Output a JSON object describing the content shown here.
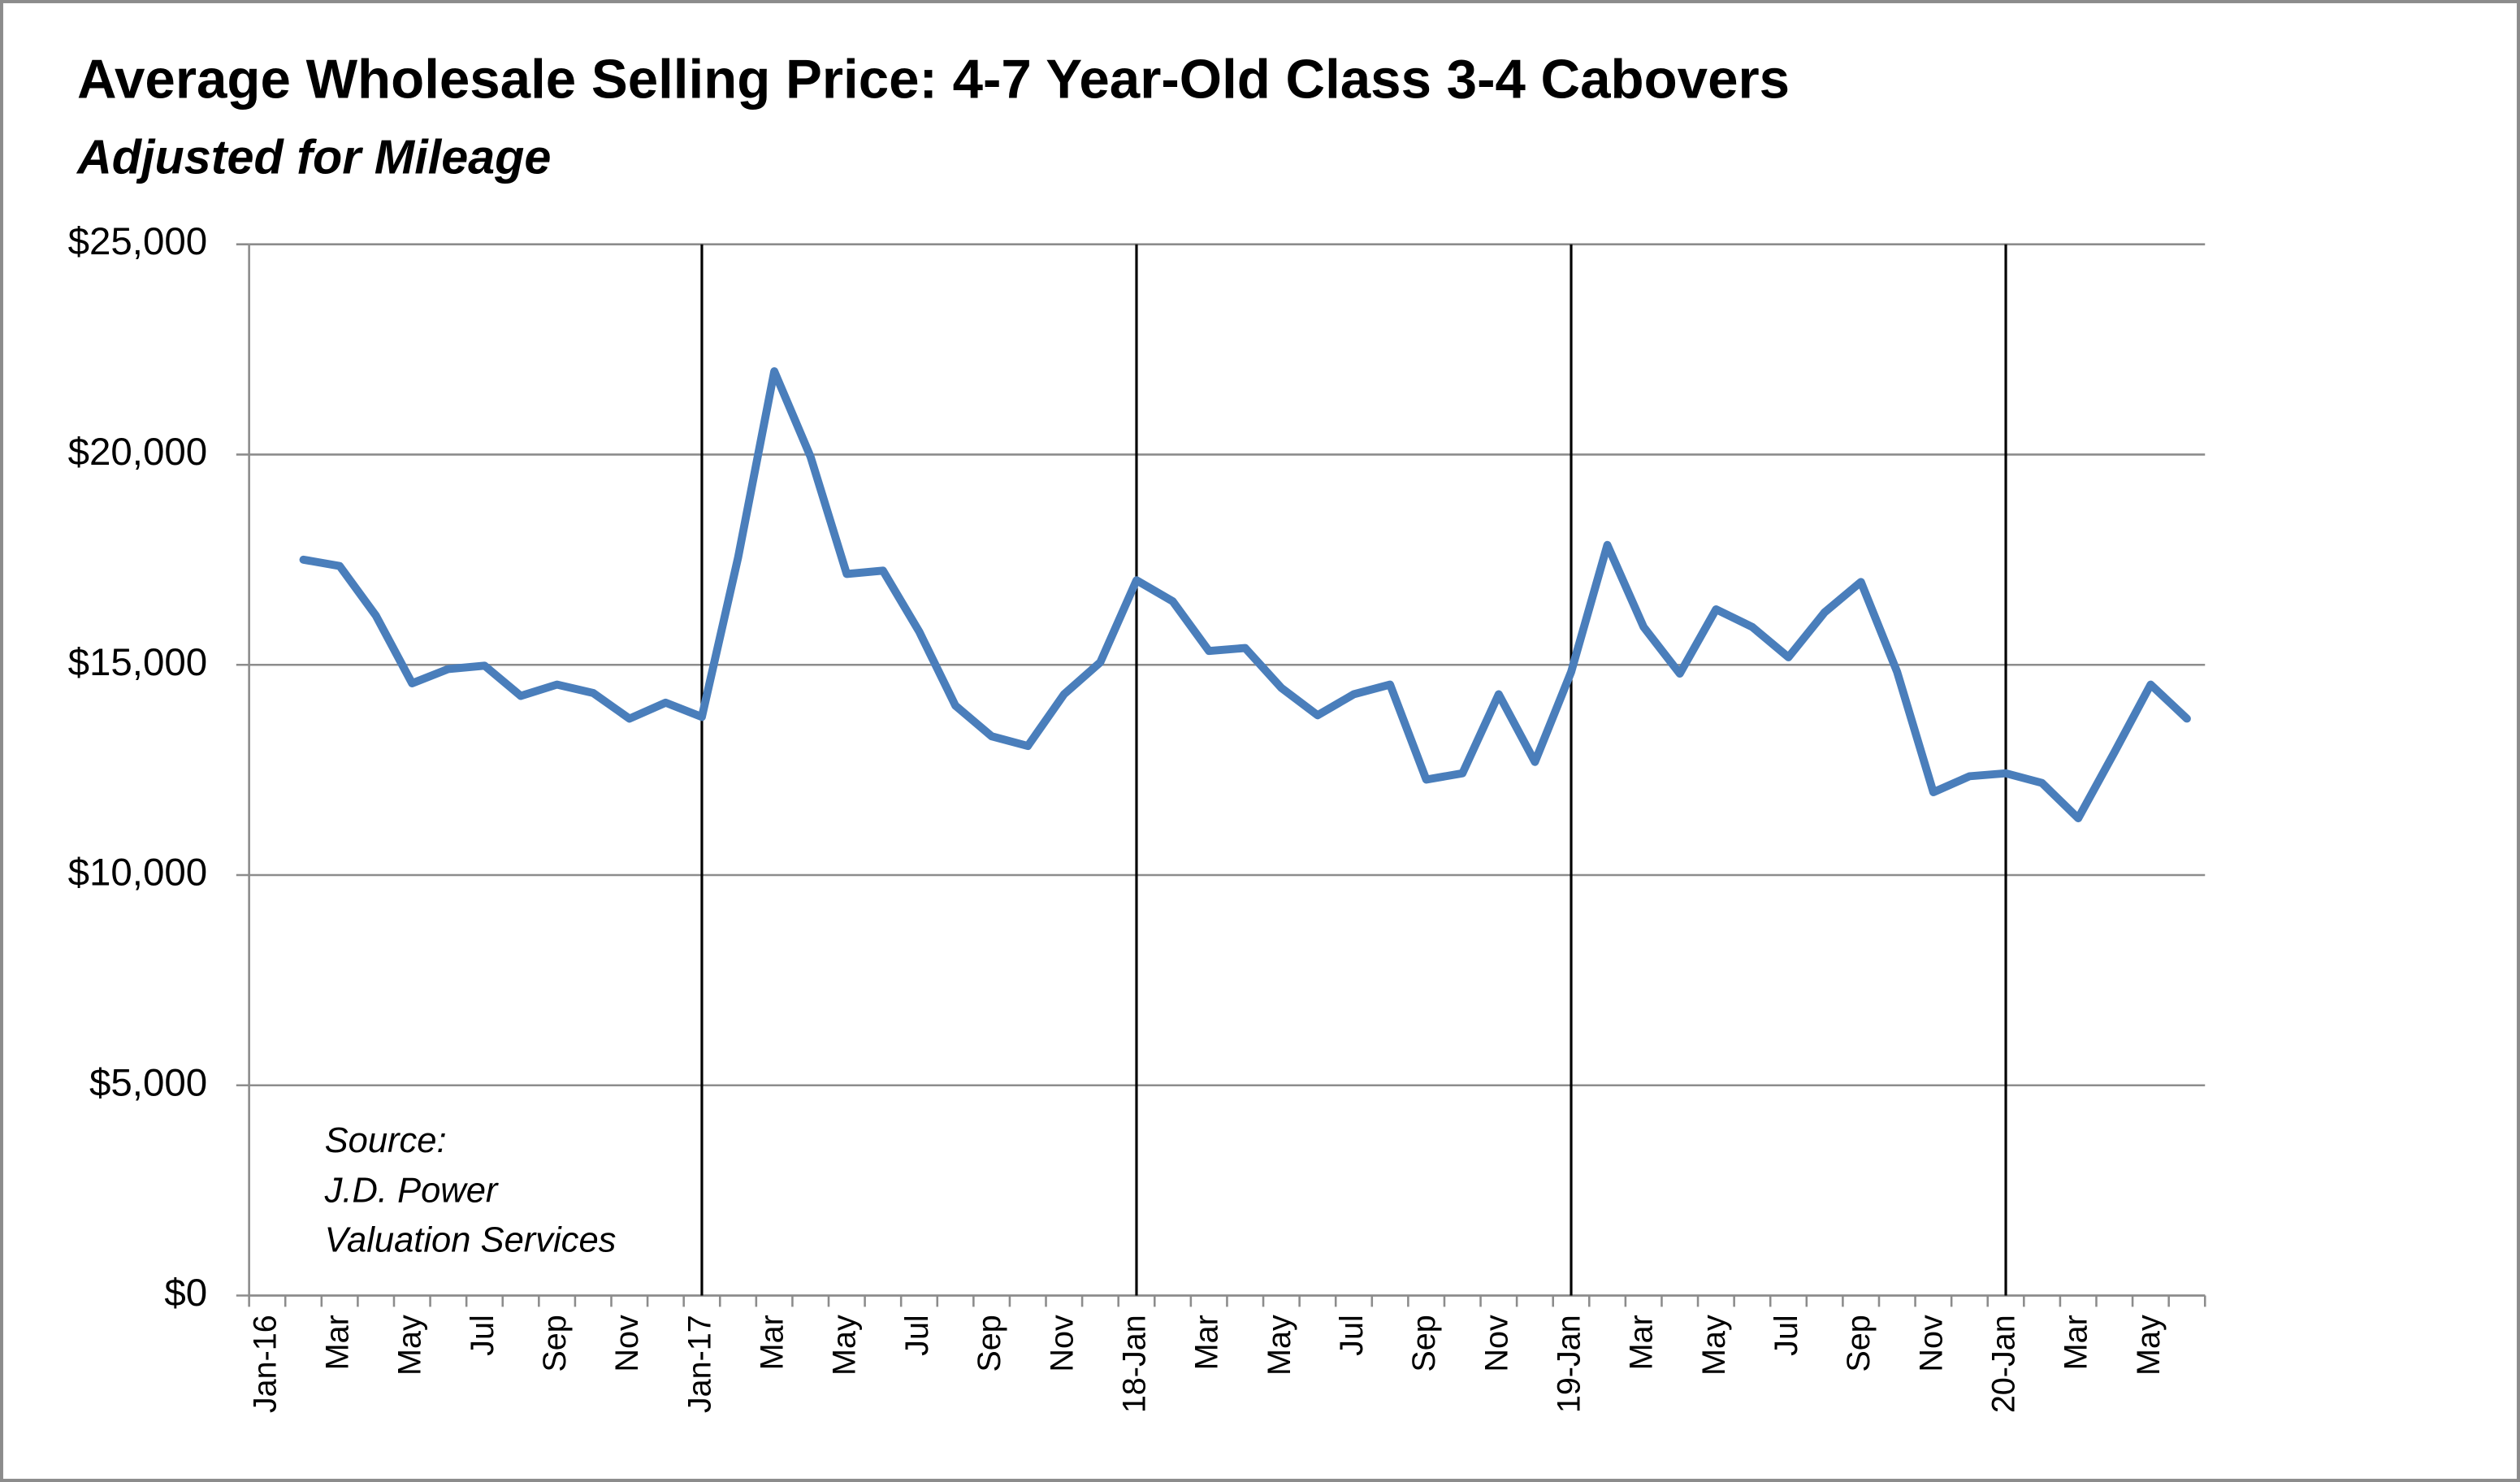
{
  "chart_data": {
    "type": "line",
    "title": "Average Wholesale Selling Price: 4-7 Year-Old Class 3-4 Cabovers",
    "subtitle": "Adjusted for Mileage",
    "annotation": [
      "Source:",
      "J.D. Power",
      "Valuation Services"
    ],
    "categories": [
      "Jan-16",
      null,
      "Mar",
      null,
      "May",
      null,
      "Jul",
      null,
      "Sep",
      null,
      "Nov",
      null,
      "Jan-17",
      null,
      "Mar",
      null,
      "May",
      null,
      "Jul",
      null,
      "Sep",
      null,
      "Nov",
      null,
      "18-Jan",
      null,
      "Mar",
      null,
      "May",
      null,
      "Jul",
      null,
      "Sep",
      null,
      "Nov",
      null,
      "19-Jan",
      null,
      "Mar",
      null,
      "May",
      null,
      "Jul",
      null,
      "Sep",
      null,
      "Nov",
      null,
      "20-Jan",
      null,
      "Mar",
      null,
      "May",
      null
    ],
    "series": [
      {
        "name": "Average Wholesale Selling Price",
        "color": "#4a7ebb",
        "values": [
          null,
          17500,
          17350,
          16170,
          14560,
          14900,
          14980,
          14260,
          14530,
          14330,
          13720,
          14100,
          13760,
          17550,
          21980,
          19950,
          17160,
          17240,
          15790,
          14030,
          13300,
          13070,
          14300,
          15060,
          17010,
          16510,
          15330,
          15400,
          14450,
          13800,
          14300,
          14530,
          12270,
          12420,
          14300,
          12690,
          14830,
          17850,
          15900,
          14790,
          16320,
          15900,
          15180,
          16250,
          16970,
          14830,
          11970,
          12350,
          12420,
          12190,
          11350,
          12920,
          14530,
          13720
        ]
      }
    ],
    "ylim": [
      0,
      25000
    ],
    "yticks": [
      {
        "value": 0,
        "label": "$0"
      },
      {
        "value": 5000,
        "label": "$5,000"
      },
      {
        "value": 10000,
        "label": "$10,000"
      },
      {
        "value": 15000,
        "label": "$15,000"
      },
      {
        "value": 20000,
        "label": "$20,000"
      },
      {
        "value": 25000,
        "label": "$25,000"
      }
    ],
    "grid": true
  }
}
